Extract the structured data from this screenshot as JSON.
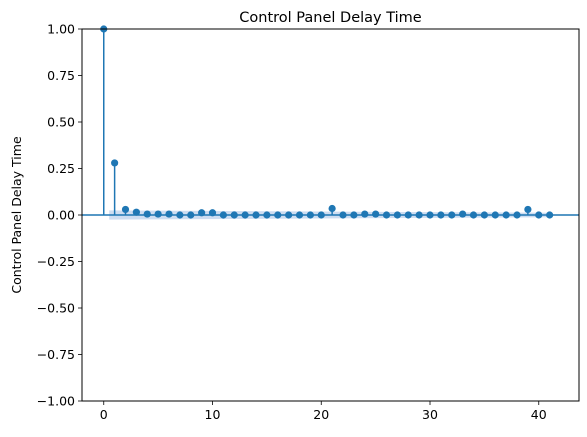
{
  "chart_data": {
    "type": "scatter",
    "subtype": "stem-autocorrelation",
    "title": "Control Panel Delay Time",
    "xlabel": "",
    "ylabel": "Control Panel Delay Time",
    "xlim": [
      -2,
      43.7
    ],
    "ylim": [
      -1.0,
      1.0
    ],
    "x_ticks": [
      0,
      10,
      20,
      30,
      40
    ],
    "y_ticks": [
      1.0,
      0.75,
      0.5,
      0.25,
      0.0,
      -0.25,
      -0.5,
      -0.75,
      -1.0
    ],
    "x_tick_labels": [
      "0",
      "10",
      "20",
      "30",
      "40"
    ],
    "y_tick_labels": [
      "1.00",
      "0.75",
      "0.50",
      "0.25",
      "0.00",
      "−0.25",
      "−0.50",
      "−0.75",
      "−1.00"
    ],
    "grid": false,
    "legend": "none",
    "colors": {
      "series": "#1f77b4",
      "confidence_band": "#aec7e8",
      "zero_line": "#1f77b4"
    },
    "lags": [
      0,
      1,
      2,
      3,
      4,
      5,
      6,
      7,
      8,
      9,
      10,
      11,
      12,
      13,
      14,
      15,
      16,
      17,
      18,
      19,
      20,
      21,
      22,
      23,
      24,
      25,
      26,
      27,
      28,
      29,
      30,
      31,
      32,
      33,
      34,
      35,
      36,
      37,
      38,
      39,
      40,
      41
    ],
    "values": [
      1.0,
      0.28,
      0.03,
      0.015,
      0.005,
      0.005,
      0.005,
      0.0,
      0.0,
      0.012,
      0.012,
      0.0,
      0.0,
      0.0,
      0.0,
      0.0,
      0.0,
      0.0,
      0.0,
      0.0,
      0.0,
      0.035,
      0.0,
      0.0,
      0.005,
      0.005,
      0.0,
      0.0,
      0.0,
      0.0,
      0.0,
      0.0,
      0.0,
      0.005,
      0.0,
      0.0,
      0.0,
      0.0,
      0.0,
      0.03,
      0.0,
      0.0
    ],
    "confidence_band": {
      "x_start": 0.5,
      "x_end": 41,
      "upper_start": 0.025,
      "upper_end": 0.012
    }
  }
}
